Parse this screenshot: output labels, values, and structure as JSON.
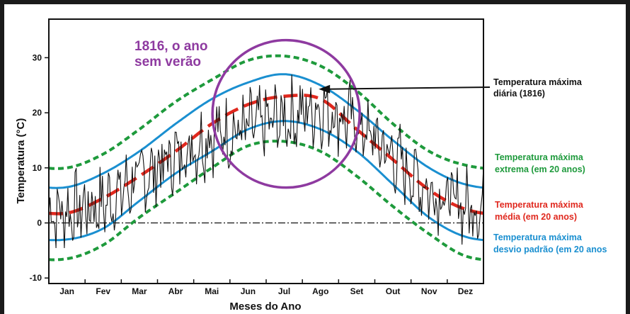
{
  "chart_data": {
    "type": "line",
    "title": "1816, o ano sem verão",
    "xlabel": "Meses do Ano",
    "ylabel": "Temperatura (°C)",
    "categories": [
      "Jan",
      "Fev",
      "Mar",
      "Abr",
      "Mai",
      "Jun",
      "Jul",
      "Ago",
      "Set",
      "Out",
      "Nov",
      "Dez"
    ],
    "x": [
      0.5,
      1.5,
      2.5,
      3.5,
      4.5,
      5.5,
      6.5,
      7.5,
      8.5,
      9.5,
      10.5,
      11.5
    ],
    "ylim": [
      -11,
      37
    ],
    "yticks": [
      -10,
      0,
      10,
      20,
      30
    ],
    "grid": false,
    "zero_line": true,
    "series": [
      {
        "name": "Temperatura máxima extrema (em 20 anos)",
        "color": "#1e9a3c",
        "style": "dotted",
        "values": [
          10,
          12.5,
          17,
          22,
          26,
          29.5,
          30.3,
          28.5,
          24,
          18,
          13,
          10.5
        ]
      },
      {
        "name": "Temperatura máxima desvio padrão (em 20 anos) superior",
        "color": "#1a8fd0",
        "style": "solid",
        "values": [
          6.5,
          9,
          13,
          18,
          22.5,
          25.5,
          27,
          25,
          20.5,
          15,
          10,
          7
        ]
      },
      {
        "name": "Temperatura máxima média (em 20 anos)",
        "color": "#e0281e",
        "style": "dashed",
        "values": [
          1.8,
          4.5,
          8.5,
          13,
          18,
          21.5,
          23,
          22.5,
          17,
          11.5,
          6,
          2.5
        ]
      },
      {
        "name": "Temperatura máxima desvio padrão (em 20 anos) inferior",
        "color": "#1a8fd0",
        "style": "solid",
        "values": [
          -3,
          -1,
          4,
          9,
          13,
          17,
          18.5,
          17,
          13,
          7,
          1,
          -2.5
        ]
      },
      {
        "name": "Temperatura máxima extrema (em 20 anos) inferior",
        "color": "#1e9a3c",
        "style": "dotted",
        "values": [
          -6.5,
          -4,
          1,
          5.5,
          10,
          14,
          14.8,
          13,
          8.5,
          3,
          -2,
          -6
        ]
      },
      {
        "name": "Temperatura máxima diária (1816)",
        "color": "#111111",
        "style": "solid",
        "values": [
          2,
          3.5,
          8,
          12,
          16,
          17,
          19,
          21,
          18,
          12,
          6,
          3
        ]
      }
    ],
    "annotations": [
      {
        "text": "Temperatura máxima diária (1816)",
        "color": "#111111"
      },
      {
        "text": "Temperatura máxima extrema (em 20 anos)",
        "color": "#1e9a3c"
      },
      {
        "text": "Temperatura máxima média (em 20 anos)",
        "color": "#e0281e"
      },
      {
        "text": "Temperatura máxima desvio padrão (em 20 anos)",
        "color": "#1a8fd0"
      }
    ],
    "labels": {
      "title_line1": "1816, o ano",
      "title_line2": "sem verão",
      "daily_line1": "Temperatura máxima",
      "daily_line2": "diária (1816)",
      "extreme_line1": "Temperatura máxima",
      "extreme_line2": "extrema (em 20 anos)",
      "mean_line1": "Temperatura máxima",
      "mean_line2": "média (em 20 anos)",
      "sd_line1": "Temperatura máxima",
      "sd_line2": "desvio padrão (em 20 anos"
    },
    "highlight_circle_color": "#8e3aa0"
  }
}
